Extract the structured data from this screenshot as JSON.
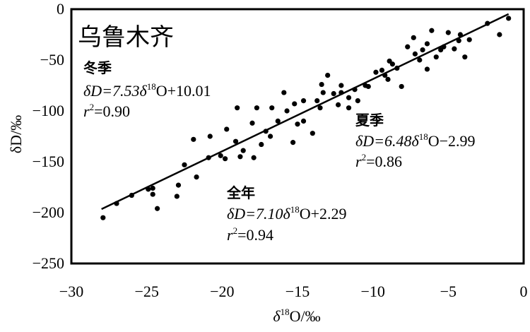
{
  "chart_data": {
    "type": "scatter",
    "title": "乌鲁木齐",
    "xlabel": {
      "prefix": "δ",
      "sup": "18",
      "suffix": "O/‰"
    },
    "ylabel": "δD/‰",
    "xlim": [
      -30,
      0
    ],
    "ylim": [
      -250,
      0
    ],
    "xticks": [
      -30,
      -25,
      -20,
      -15,
      -10,
      -5,
      0
    ],
    "xtick_labels": [
      "−30",
      "−25",
      "−20",
      "−15",
      "−10",
      "−5",
      "0"
    ],
    "yticks": [
      0,
      -50,
      -100,
      -150,
      -200,
      -250
    ],
    "ytick_labels": [
      "0",
      "−50",
      "−100",
      "−150",
      "−200",
      "−250"
    ],
    "grid": false,
    "points": [
      [
        -1.0,
        -9
      ],
      [
        -1.6,
        -25
      ],
      [
        -2.4,
        -14
      ],
      [
        -3.6,
        -30
      ],
      [
        -3.9,
        -47
      ],
      [
        -4.2,
        -25
      ],
      [
        -4.3,
        -31
      ],
      [
        -4.6,
        -39
      ],
      [
        -5.0,
        -23
      ],
      [
        -5.3,
        -37
      ],
      [
        -5.5,
        -40
      ],
      [
        -5.8,
        -47
      ],
      [
        -6.1,
        -21
      ],
      [
        -6.4,
        -59
      ],
      [
        -6.4,
        -34
      ],
      [
        -6.7,
        -40
      ],
      [
        -6.9,
        -50
      ],
      [
        -7.2,
        -44
      ],
      [
        -7.3,
        -28
      ],
      [
        -7.7,
        -37
      ],
      [
        -8.1,
        -76
      ],
      [
        -8.4,
        -58
      ],
      [
        -8.7,
        -54
      ],
      [
        -8.9,
        -51
      ],
      [
        -9.0,
        -69
      ],
      [
        -9.2,
        -65
      ],
      [
        -9.4,
        -60
      ],
      [
        -9.8,
        -62
      ],
      [
        -10.3,
        -76
      ],
      [
        -10.5,
        -75
      ],
      [
        -11.0,
        -90
      ],
      [
        -11.2,
        -79
      ],
      [
        -11.6,
        -97
      ],
      [
        -11.6,
        -87
      ],
      [
        -12.1,
        -75
      ],
      [
        -12.1,
        -82
      ],
      [
        -12.3,
        -94
      ],
      [
        -12.6,
        -83
      ],
      [
        -13.0,
        -65
      ],
      [
        -13.3,
        -82
      ],
      [
        -13.4,
        -74
      ],
      [
        -13.5,
        -97
      ],
      [
        -13.7,
        -90
      ],
      [
        -14.0,
        -122
      ],
      [
        -14.6,
        -90
      ],
      [
        -14.6,
        -110
      ],
      [
        -15.0,
        -113
      ],
      [
        -15.2,
        -93
      ],
      [
        -15.3,
        -131
      ],
      [
        -15.7,
        -100
      ],
      [
        -15.9,
        -82
      ],
      [
        -16.3,
        -110
      ],
      [
        -16.7,
        -97
      ],
      [
        -16.8,
        -125
      ],
      [
        -17.1,
        -120
      ],
      [
        -17.4,
        -133
      ],
      [
        -17.7,
        -97
      ],
      [
        -17.9,
        -146
      ],
      [
        -18.0,
        -112
      ],
      [
        -18.6,
        -139
      ],
      [
        -18.8,
        -145
      ],
      [
        -19.0,
        -97
      ],
      [
        -19.1,
        -130
      ],
      [
        -19.7,
        -118
      ],
      [
        -19.8,
        -147
      ],
      [
        -20.1,
        -144
      ],
      [
        -20.8,
        -125
      ],
      [
        -20.9,
        -146
      ],
      [
        -21.7,
        -165
      ],
      [
        -21.9,
        -128
      ],
      [
        -22.5,
        -153
      ],
      [
        -22.9,
        -173
      ],
      [
        -23.0,
        -184
      ],
      [
        -24.3,
        -196
      ],
      [
        -24.6,
        -176
      ],
      [
        -24.6,
        -182
      ],
      [
        -24.9,
        -177
      ],
      [
        -26.0,
        -183
      ],
      [
        -27.0,
        -191
      ],
      [
        -27.9,
        -205
      ]
    ],
    "fit_line": {
      "slope": 7.1,
      "intercept": 2.29,
      "x_range": [
        -28,
        -1
      ]
    },
    "annotations": {
      "winter": {
        "label": "冬季",
        "eq_prefix": "δD=7.53δ",
        "eq_sup": "18",
        "eq_suffix": "O+10.01",
        "r2_prefix": "r",
        "r2_sup": "2",
        "r2_suffix": "=0.90"
      },
      "summer": {
        "label": "夏季",
        "eq_prefix": "δD=6.48δ",
        "eq_sup": "18",
        "eq_suffix": "O−2.99",
        "r2_prefix": "r",
        "r2_sup": "2",
        "r2_suffix": "=0.86"
      },
      "annual": {
        "label": "全年",
        "eq_prefix": "δD=7.10δ",
        "eq_sup": "18",
        "eq_suffix": "O+2.29",
        "r2_prefix": "r",
        "r2_sup": "2",
        "r2_suffix": "=0.94"
      }
    }
  }
}
